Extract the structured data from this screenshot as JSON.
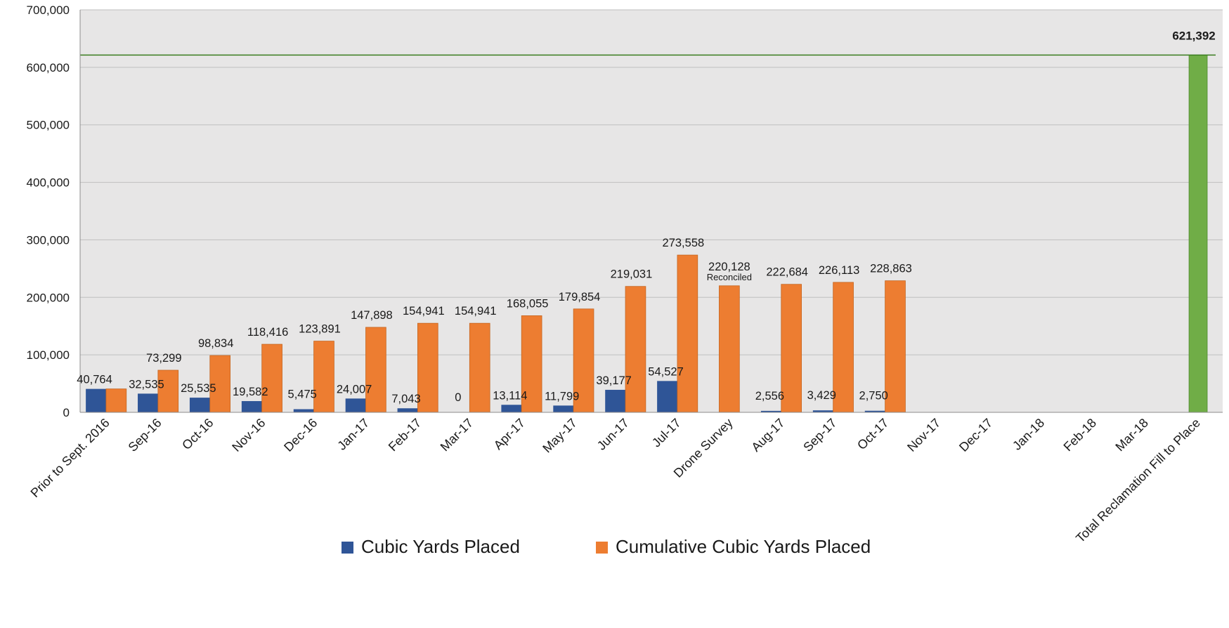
{
  "colors": {
    "placed": "#2F5597",
    "cumulative": "#ED7D31",
    "total": "#70AD47",
    "glow": "#92D050",
    "plot_bg": "#E7E6E6",
    "grid": "#BFBFBF",
    "text": "#1a1a1a"
  },
  "chart_data": {
    "type": "bar",
    "categories": [
      "Prior to Sept. 2016",
      "Sep-16",
      "Oct-16",
      "Nov-16",
      "Dec-16",
      "Jan-17",
      "Feb-17",
      "Mar-17",
      "Apr-17",
      "May-17",
      "Jun-17",
      "Jul-17",
      "Drone Survey",
      "Aug-17",
      "Sep-17",
      "Oct-17",
      "Nov-17",
      "Dec-17",
      "Jan-18",
      "Feb-18",
      "Mar-18",
      "Total Reclamation Fill to Place"
    ],
    "series": [
      {
        "name": "Cubic Yards Placed",
        "values": [
          40764,
          32535,
          25535,
          19582,
          5475,
          24007,
          7043,
          0,
          13114,
          11799,
          39177,
          54527,
          null,
          2556,
          3429,
          2750,
          null,
          null,
          null,
          null,
          null,
          null
        ],
        "labels": [
          "40,764",
          "32,535",
          "25,535",
          "19,582",
          "5,475",
          "24,007",
          "7,043",
          "0",
          "13,114",
          "11,799",
          "39,177",
          "54,527",
          "",
          "2,556",
          "3,429",
          "2,750",
          "",
          "",
          "",
          "",
          "",
          ""
        ]
      },
      {
        "name": "Cumulative Cubic Yards Placed",
        "values": [
          40764,
          73299,
          98834,
          118416,
          123891,
          147898,
          154941,
          154941,
          168055,
          179854,
          219031,
          273558,
          220128,
          222684,
          226113,
          228863,
          null,
          null,
          null,
          null,
          null,
          null
        ],
        "labels": [
          "",
          "73,299",
          "98,834",
          "118,416",
          "123,891",
          "147,898",
          "154,941",
          "154,941",
          "168,055",
          "179,854",
          "219,031",
          "273,558",
          "220,128",
          "222,684",
          "226,113",
          "228,863",
          "",
          "",
          "",
          "",
          "",
          ""
        ]
      },
      {
        "name": "Total Reclamation Fill to Place",
        "values": [
          null,
          null,
          null,
          null,
          null,
          null,
          null,
          null,
          null,
          null,
          null,
          null,
          null,
          null,
          null,
          null,
          null,
          null,
          null,
          null,
          null,
          621392
        ],
        "labels": [
          "",
          "",
          "",
          "",
          "",
          "",
          "",
          "",
          "",
          "",
          "",
          "",
          "",
          "",
          "",
          "",
          "",
          "",
          "",
          "",
          "",
          "621,392"
        ]
      }
    ],
    "annotations": [
      {
        "category": "Drone Survey",
        "text": "Reconciled"
      }
    ],
    "reference_line": {
      "value": 621392
    },
    "ylim": [
      0,
      700000
    ],
    "yticks": [
      0,
      100000,
      200000,
      300000,
      400000,
      500000,
      600000,
      700000
    ],
    "ytick_labels": [
      "0",
      "100,000",
      "200,000",
      "300,000",
      "400,000",
      "500,000",
      "600,000",
      "700,000"
    ],
    "grid": true,
    "legend": {
      "position": "bottom-center",
      "items": [
        "Cubic Yards Placed",
        "Cumulative Cubic Yards Placed"
      ]
    },
    "title": "",
    "xlabel": "",
    "ylabel": ""
  }
}
